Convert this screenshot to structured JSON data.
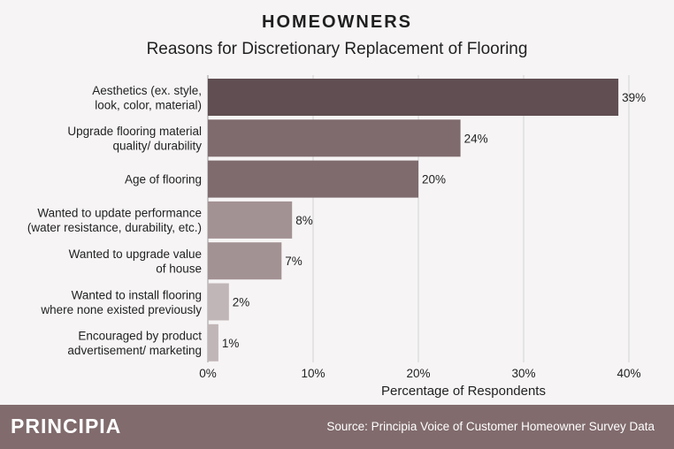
{
  "chart_data": {
    "type": "bar",
    "orientation": "horizontal",
    "title": "HOMEOWNERS",
    "subtitle": "Reasons for Discretionary Replacement of Flooring",
    "xlabel": "Percentage of Respondents",
    "xlim": [
      0,
      40
    ],
    "xticks": [
      0,
      10,
      20,
      30,
      40
    ],
    "xtick_labels": [
      "0%",
      "10%",
      "20%",
      "30%",
      "40%"
    ],
    "grid": true,
    "categories": [
      [
        "Aesthetics (ex. style,",
        "look, color, material)"
      ],
      [
        "Upgrade flooring material",
        "quality/ durability"
      ],
      [
        "Age of flooring"
      ],
      [
        "Wanted to update performance",
        "(water resistance, durability, etc.)"
      ],
      [
        "Wanted to upgrade value",
        "of house"
      ],
      [
        "Wanted to install flooring",
        "where none existed previously"
      ],
      [
        "Encouraged by product",
        "advertisement/ marketing"
      ]
    ],
    "values": [
      39,
      24,
      20,
      8,
      7,
      2,
      1
    ],
    "value_labels": [
      "39%",
      "24%",
      "20%",
      "8%",
      "7%",
      "2%",
      "1%"
    ],
    "bar_colors": [
      "#604e52",
      "#7f6b6e",
      "#7f6b6e",
      "#a39294",
      "#a39294",
      "#c1b6b7",
      "#c1b6b7"
    ]
  },
  "footer": {
    "brand": "PRINCIPIA",
    "source": "Source: Principia Voice of Customer Homeowner Survey Data",
    "background": "#816b6d"
  }
}
